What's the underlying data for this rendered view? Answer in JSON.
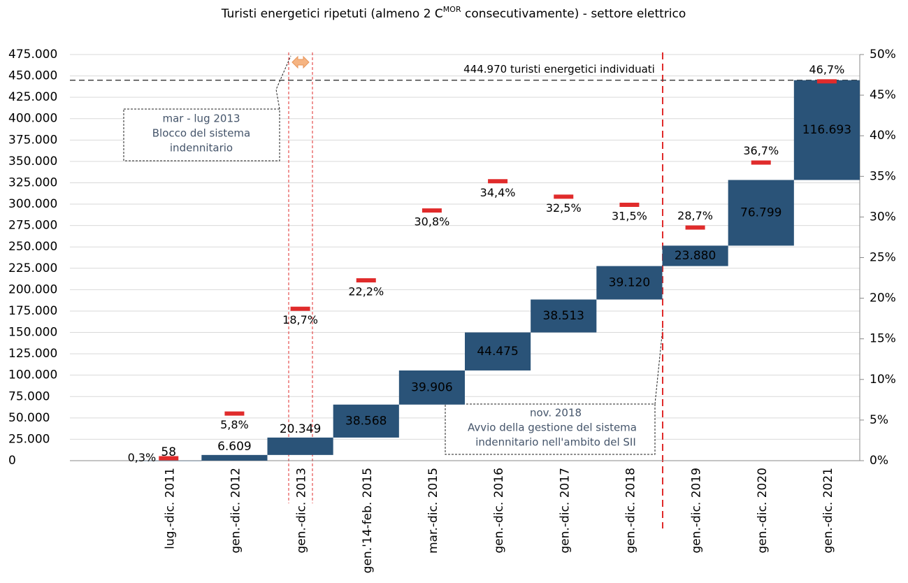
{
  "chart_data": {
    "type": "waterfall",
    "title": [
      "Turisti energetici ripetuti (almeno 2 C",
      "MOR",
      " consecutivamente) - settore elettrico"
    ],
    "categories": [
      null,
      "lug.-dic. 2011",
      "gen.-dic. 2012",
      "gen.-dic. 2013",
      "gen.'14-feb. 2015",
      "mar.-dic. 2015",
      "gen.-dic. 2016",
      "gen.-dic. 2017",
      "gen.-dic. 2018",
      "gen.-dic. 2019",
      "gen.-dic. 2020",
      "gen.-dic. 2021"
    ],
    "series": [
      {
        "color": "#2a5378",
        "values": [
          null,
          58,
          6609,
          20349,
          38568,
          39906,
          44475,
          38513,
          39120,
          23880,
          76799,
          116693
        ],
        "value_labels": [
          null,
          "58",
          "6.609",
          "20.349",
          "38.568",
          "39.906",
          "44.475",
          "38.513",
          "39.120",
          "23.880",
          "76.799",
          "116.693"
        ]
      },
      {
        "axis": "y2",
        "color": "#e02b2b",
        "values": [
          null,
          0.3,
          5.8,
          18.7,
          22.2,
          30.8,
          34.4,
          32.5,
          31.5,
          28.7,
          36.7,
          46.7
        ],
        "value_labels": [
          null,
          "0,3%",
          "5,8%",
          "18,7%",
          "22,2%",
          "30,8%",
          "34,4%",
          "32,5%",
          "31,5%",
          "28,7%",
          "36,7%",
          "46,7%"
        ]
      }
    ],
    "ylim": [
      0,
      475000
    ],
    "yticks": [
      0,
      {
        "value": 25000,
        "label": "25.000"
      },
      {
        "value": 50000,
        "label": "50.000"
      },
      {
        "value": 75000,
        "label": "75.000"
      },
      {
        "value": 100000,
        "label": "100.000"
      },
      {
        "value": 125000,
        "label": "125.000"
      },
      {
        "value": 150000,
        "label": "150.000"
      },
      {
        "value": 175000,
        "label": "175.000"
      },
      {
        "value": 200000,
        "label": "200.000"
      },
      {
        "value": 225000,
        "label": "225.000"
      },
      {
        "value": 250000,
        "label": "250.000"
      },
      {
        "value": 275000,
        "label": "275.000"
      },
      {
        "value": 300000,
        "label": "300.000"
      },
      {
        "value": 325000,
        "label": "325.000"
      },
      {
        "value": 350000,
        "label": "350.000"
      },
      {
        "value": 375000,
        "label": "375.000"
      },
      {
        "value": 400000,
        "label": "400.000"
      },
      {
        "value": 425000,
        "label": "425.000"
      },
      {
        "value": 450000,
        "label": "450.000"
      },
      {
        "value": 475000,
        "label": "475.000"
      }
    ],
    "y2lim": [
      0,
      50
    ],
    "y2ticks": [
      {
        "value": 0,
        "label": "0%"
      },
      {
        "value": 5,
        "label": "5%"
      },
      {
        "value": 10,
        "label": "10%"
      },
      {
        "value": 15,
        "label": "15%"
      },
      {
        "value": 20,
        "label": "20%"
      },
      {
        "value": 25,
        "label": "25%"
      },
      {
        "value": 30,
        "label": "30%"
      },
      {
        "value": 35,
        "label": "35%"
      },
      {
        "value": 40,
        "label": "40%"
      },
      {
        "value": 45,
        "label": "45%"
      },
      {
        "value": 50,
        "label": "50%"
      }
    ],
    "grid": true,
    "total_line": {
      "value": 444970,
      "label": "444.970 turisti energetici individuati"
    },
    "annotations": [
      [
        "mar - lug 2013",
        "Blocco del sistema",
        "indennitario"
      ],
      [
        "nov. 2018",
        "Avvio della gestione del sistema",
        "indennitario nell'ambito del SII"
      ]
    ]
  }
}
